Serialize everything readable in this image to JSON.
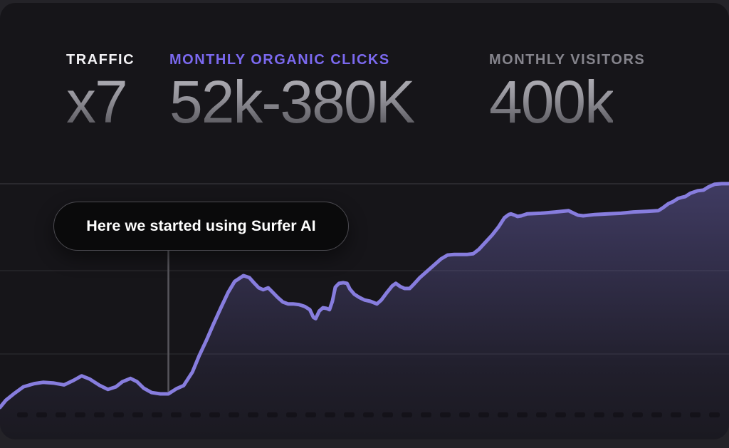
{
  "header": {
    "stats": [
      {
        "label": "TRAFFIC",
        "value": "x7"
      },
      {
        "label": "MONTHLY ORGANIC CLICKS",
        "value": "52k-380K"
      },
      {
        "label": "MONTHLY VISITORS",
        "value": "400k"
      }
    ]
  },
  "annotation": {
    "label": "Here we started using Surfer AI"
  },
  "colors": {
    "accent_purple": "#7b69ef",
    "chart_line": "#877dde",
    "chart_fill": "#8379d9",
    "card_background": "#161519",
    "page_background": "#242328",
    "tooltip_background": "#0a0a0b",
    "tooltip_border": "#4b4a50",
    "gridline": "#2b2a2f",
    "value_gradient_top": "#b6b5bc",
    "value_gradient_bottom": "#4e4d53"
  },
  "chart_data": {
    "type": "area",
    "title": "",
    "xlabel": "",
    "ylabel": "",
    "legend": false,
    "grid": true,
    "gridline_count": 3,
    "x_axis_labels_legible": false,
    "unit": "thousand clicks per month",
    "ylim": [
      31,
      380
    ],
    "annotation": {
      "label": "Here we started using Surfer AI",
      "x": 0.231,
      "value": 52
    },
    "series": [
      {
        "name": "monthly-organic-clicks",
        "points": [
          [
            0.0,
            31
          ],
          [
            0.008,
            42
          ],
          [
            0.02,
            53
          ],
          [
            0.032,
            63
          ],
          [
            0.047,
            68
          ],
          [
            0.059,
            70
          ],
          [
            0.073,
            69
          ],
          [
            0.088,
            66
          ],
          [
            0.101,
            73
          ],
          [
            0.112,
            80
          ],
          [
            0.123,
            75
          ],
          [
            0.137,
            65
          ],
          [
            0.148,
            59
          ],
          [
            0.159,
            63
          ],
          [
            0.168,
            71
          ],
          [
            0.179,
            76
          ],
          [
            0.188,
            71
          ],
          [
            0.197,
            61
          ],
          [
            0.208,
            54
          ],
          [
            0.22,
            52
          ],
          [
            0.231,
            52
          ],
          [
            0.242,
            60
          ],
          [
            0.252,
            65
          ],
          [
            0.264,
            86
          ],
          [
            0.273,
            111
          ],
          [
            0.283,
            135
          ],
          [
            0.293,
            161
          ],
          [
            0.303,
            186
          ],
          [
            0.313,
            210
          ],
          [
            0.322,
            227
          ],
          [
            0.334,
            236
          ],
          [
            0.342,
            233
          ],
          [
            0.349,
            224
          ],
          [
            0.355,
            217
          ],
          [
            0.361,
            214
          ],
          [
            0.368,
            217
          ],
          [
            0.374,
            210
          ],
          [
            0.381,
            202
          ],
          [
            0.388,
            195
          ],
          [
            0.395,
            192
          ],
          [
            0.402,
            192
          ],
          [
            0.41,
            191
          ],
          [
            0.418,
            188
          ],
          [
            0.425,
            183
          ],
          [
            0.43,
            171
          ],
          [
            0.433,
            169
          ],
          [
            0.438,
            181
          ],
          [
            0.443,
            186
          ],
          [
            0.448,
            185
          ],
          [
            0.452,
            183
          ],
          [
            0.456,
            196
          ],
          [
            0.46,
            218
          ],
          [
            0.465,
            224
          ],
          [
            0.471,
            225
          ],
          [
            0.476,
            224
          ],
          [
            0.48,
            215
          ],
          [
            0.486,
            207
          ],
          [
            0.493,
            202
          ],
          [
            0.5,
            198
          ],
          [
            0.508,
            196
          ],
          [
            0.517,
            192
          ],
          [
            0.523,
            198
          ],
          [
            0.531,
            210
          ],
          [
            0.538,
            220
          ],
          [
            0.543,
            224
          ],
          [
            0.549,
            219
          ],
          [
            0.555,
            216
          ],
          [
            0.562,
            216
          ],
          [
            0.568,
            223
          ],
          [
            0.576,
            233
          ],
          [
            0.586,
            243
          ],
          [
            0.596,
            253
          ],
          [
            0.605,
            262
          ],
          [
            0.614,
            268
          ],
          [
            0.623,
            269
          ],
          [
            0.641,
            269
          ],
          [
            0.649,
            270
          ],
          [
            0.657,
            277
          ],
          [
            0.666,
            288
          ],
          [
            0.675,
            299
          ],
          [
            0.684,
            312
          ],
          [
            0.692,
            326
          ],
          [
            0.698,
            331
          ],
          [
            0.701,
            332
          ],
          [
            0.706,
            330
          ],
          [
            0.71,
            328
          ],
          [
            0.715,
            329
          ],
          [
            0.723,
            332
          ],
          [
            0.742,
            333
          ],
          [
            0.762,
            335
          ],
          [
            0.78,
            337
          ],
          [
            0.787,
            333
          ],
          [
            0.793,
            330
          ],
          [
            0.8,
            329
          ],
          [
            0.816,
            331
          ],
          [
            0.834,
            332
          ],
          [
            0.852,
            333
          ],
          [
            0.869,
            335
          ],
          [
            0.887,
            336
          ],
          [
            0.903,
            337
          ],
          [
            0.91,
            342
          ],
          [
            0.917,
            348
          ],
          [
            0.923,
            351
          ],
          [
            0.93,
            356
          ],
          [
            0.936,
            358
          ],
          [
            0.94,
            359
          ],
          [
            0.947,
            364
          ],
          [
            0.957,
            368
          ],
          [
            0.965,
            369
          ],
          [
            0.972,
            374
          ],
          [
            0.98,
            378
          ],
          [
            0.99,
            379
          ],
          [
            1.0,
            379
          ]
        ]
      }
    ]
  }
}
